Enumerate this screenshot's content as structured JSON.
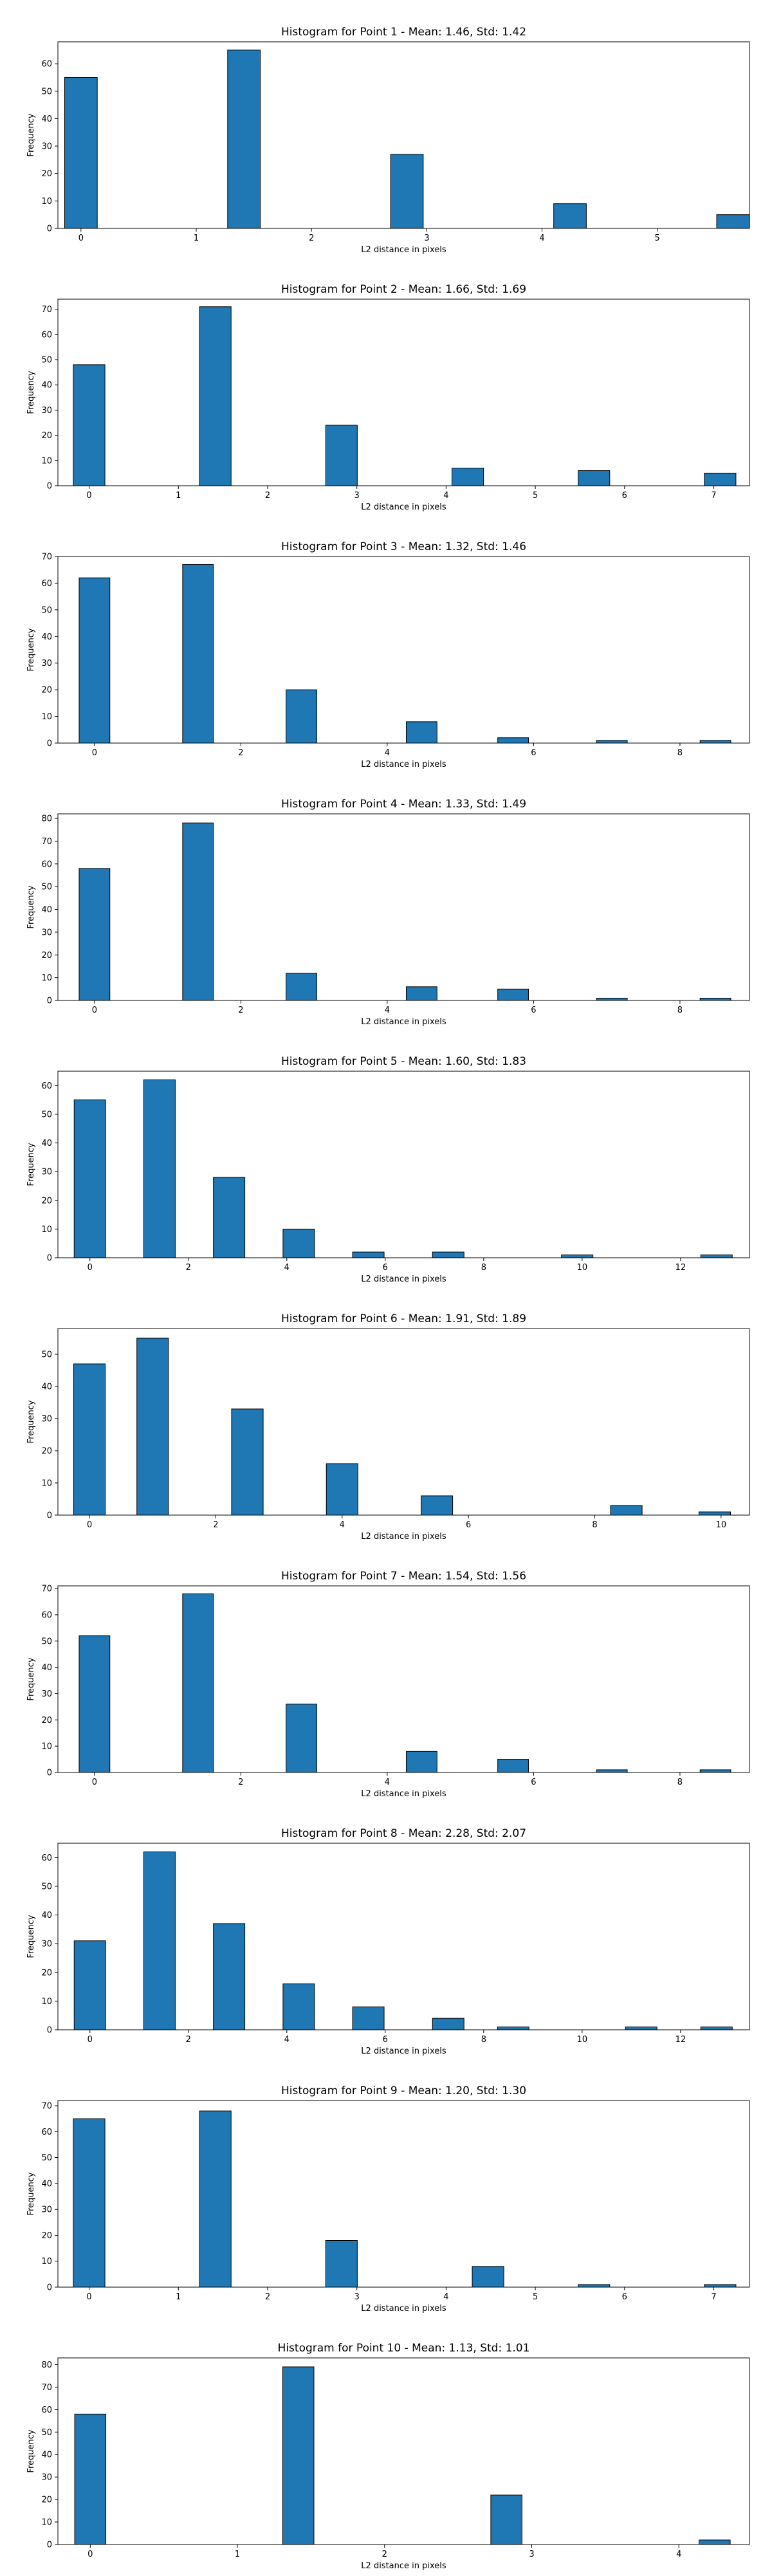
{
  "chart_data": [
    {
      "type": "bar",
      "title": "Histogram for Point 1 - Mean: 1.46, Std: 1.42",
      "xlabel": "L2 distance in pixels",
      "ylabel": "Frequency",
      "xlim": [
        -0.2,
        5.8
      ],
      "ylim": [
        0,
        68
      ],
      "xticks": [
        0,
        1,
        2,
        3,
        4,
        5
      ],
      "yticks": [
        0,
        10,
        20,
        30,
        40,
        50,
        60
      ],
      "bar_width": 0.283,
      "bars": [
        {
          "x": 0.0,
          "value": 55
        },
        {
          "x": 1.414,
          "value": 65
        },
        {
          "x": 2.828,
          "value": 27
        },
        {
          "x": 4.243,
          "value": 9
        },
        {
          "x": 5.657,
          "value": 5
        }
      ],
      "bar_color": "#1f77b4"
    },
    {
      "type": "bar",
      "title": "Histogram for Point 2 - Mean: 1.66, Std: 1.69",
      "xlabel": "L2 distance in pixels",
      "ylabel": "Frequency",
      "xlim": [
        -0.35,
        7.4
      ],
      "ylim": [
        0,
        74
      ],
      "xticks": [
        0,
        1,
        2,
        3,
        4,
        5,
        6,
        7
      ],
      "yticks": [
        0,
        10,
        20,
        30,
        40,
        50,
        60,
        70
      ],
      "bar_width": 0.354,
      "bars": [
        {
          "x": 0.0,
          "value": 48
        },
        {
          "x": 1.414,
          "value": 71
        },
        {
          "x": 2.828,
          "value": 24
        },
        {
          "x": 4.243,
          "value": 7
        },
        {
          "x": 5.657,
          "value": 6
        },
        {
          "x": 7.071,
          "value": 5
        }
      ],
      "bar_color": "#1f77b4"
    },
    {
      "type": "bar",
      "title": "Histogram for Point 3 - Mean: 1.32, Std: 1.46",
      "xlabel": "L2 distance in pixels",
      "ylabel": "Frequency",
      "xlim": [
        -0.5,
        8.95
      ],
      "ylim": [
        0,
        70
      ],
      "xticks": [
        0,
        2,
        4,
        6,
        8
      ],
      "yticks": [
        0,
        10,
        20,
        30,
        40,
        50,
        60,
        70
      ],
      "bar_width": 0.42,
      "bars": [
        {
          "x": 0.0,
          "value": 62
        },
        {
          "x": 1.414,
          "value": 67
        },
        {
          "x": 2.828,
          "value": 20
        },
        {
          "x": 4.47,
          "value": 8
        },
        {
          "x": 5.72,
          "value": 2
        },
        {
          "x": 7.07,
          "value": 1
        },
        {
          "x": 8.485,
          "value": 1
        }
      ],
      "bar_color": "#1f77b4"
    },
    {
      "type": "bar",
      "title": "Histogram for Point 4 - Mean: 1.33, Std: 1.49",
      "xlabel": "L2 distance in pixels",
      "ylabel": "Frequency",
      "xlim": [
        -0.5,
        8.95
      ],
      "ylim": [
        0,
        82
      ],
      "xticks": [
        0,
        2,
        4,
        6,
        8
      ],
      "yticks": [
        0,
        10,
        20,
        30,
        40,
        50,
        60,
        70,
        80
      ],
      "bar_width": 0.42,
      "bars": [
        {
          "x": 0.0,
          "value": 58
        },
        {
          "x": 1.414,
          "value": 78
        },
        {
          "x": 2.828,
          "value": 12
        },
        {
          "x": 4.47,
          "value": 6
        },
        {
          "x": 5.72,
          "value": 5
        },
        {
          "x": 7.07,
          "value": 1
        },
        {
          "x": 8.485,
          "value": 1
        }
      ],
      "bar_color": "#1f77b4"
    },
    {
      "type": "bar",
      "title": "Histogram for Point 5 - Mean: 1.60, Std: 1.83",
      "xlabel": "L2 distance in pixels",
      "ylabel": "Frequency",
      "xlim": [
        -0.65,
        13.4
      ],
      "ylim": [
        0,
        65
      ],
      "xticks": [
        0,
        2,
        4,
        6,
        8,
        10,
        12
      ],
      "yticks": [
        0,
        10,
        20,
        30,
        40,
        50,
        60
      ],
      "bar_width": 0.64,
      "bars": [
        {
          "x": 0.0,
          "value": 55
        },
        {
          "x": 1.414,
          "value": 62
        },
        {
          "x": 2.828,
          "value": 28
        },
        {
          "x": 4.243,
          "value": 10
        },
        {
          "x": 5.657,
          "value": 2
        },
        {
          "x": 7.28,
          "value": 2
        },
        {
          "x": 9.9,
          "value": 1
        },
        {
          "x": 12.73,
          "value": 1
        }
      ],
      "bar_color": "#1f77b4"
    },
    {
      "type": "bar",
      "title": "Histogram for Point 6 - Mean: 1.91, Std: 1.89",
      "xlabel": "L2 distance in pixels",
      "ylabel": "Frequency",
      "xlim": [
        -0.5,
        10.45
      ],
      "ylim": [
        0,
        58
      ],
      "xticks": [
        0,
        2,
        4,
        6,
        8,
        10
      ],
      "yticks": [
        0,
        10,
        20,
        30,
        40,
        50
      ],
      "bar_width": 0.5,
      "bars": [
        {
          "x": 0.0,
          "value": 47
        },
        {
          "x": 1.0,
          "value": 55
        },
        {
          "x": 2.5,
          "value": 33
        },
        {
          "x": 4.0,
          "value": 16
        },
        {
          "x": 5.5,
          "value": 6
        },
        {
          "x": 8.5,
          "value": 3
        },
        {
          "x": 9.9,
          "value": 1
        }
      ],
      "bar_color": "#1f77b4"
    },
    {
      "type": "bar",
      "title": "Histogram for Point 7 - Mean: 1.54, Std: 1.56",
      "xlabel": "L2 distance in pixels",
      "ylabel": "Frequency",
      "xlim": [
        -0.5,
        8.95
      ],
      "ylim": [
        0,
        71
      ],
      "xticks": [
        0,
        2,
        4,
        6,
        8
      ],
      "yticks": [
        0,
        10,
        20,
        30,
        40,
        50,
        60,
        70
      ],
      "bar_width": 0.42,
      "bars": [
        {
          "x": 0.0,
          "value": 52
        },
        {
          "x": 1.414,
          "value": 68
        },
        {
          "x": 2.828,
          "value": 26
        },
        {
          "x": 4.47,
          "value": 8
        },
        {
          "x": 5.72,
          "value": 5
        },
        {
          "x": 7.07,
          "value": 1
        },
        {
          "x": 8.485,
          "value": 1
        }
      ],
      "bar_color": "#1f77b4"
    },
    {
      "type": "bar",
      "title": "Histogram for Point 8 - Mean: 2.28, Std: 2.07",
      "xlabel": "L2 distance in pixels",
      "ylabel": "Frequency",
      "xlim": [
        -0.65,
        13.4
      ],
      "ylim": [
        0,
        65
      ],
      "xticks": [
        0,
        2,
        4,
        6,
        8,
        10,
        12
      ],
      "yticks": [
        0,
        10,
        20,
        30,
        40,
        50,
        60
      ],
      "bar_width": 0.64,
      "bars": [
        {
          "x": 0.0,
          "value": 31
        },
        {
          "x": 1.414,
          "value": 62
        },
        {
          "x": 2.828,
          "value": 37
        },
        {
          "x": 4.243,
          "value": 16
        },
        {
          "x": 5.657,
          "value": 8
        },
        {
          "x": 7.28,
          "value": 4
        },
        {
          "x": 8.6,
          "value": 1
        },
        {
          "x": 11.2,
          "value": 1
        },
        {
          "x": 12.73,
          "value": 1
        }
      ],
      "bar_color": "#1f77b4"
    },
    {
      "type": "bar",
      "title": "Histogram for Point 9 - Mean: 1.20, Std: 1.30",
      "xlabel": "L2 distance in pixels",
      "ylabel": "Frequency",
      "xlim": [
        -0.35,
        7.4
      ],
      "ylim": [
        0,
        72
      ],
      "xticks": [
        0,
        1,
        2,
        3,
        4,
        5,
        6,
        7
      ],
      "yticks": [
        0,
        10,
        20,
        30,
        40,
        50,
        60,
        70
      ],
      "bar_width": 0.354,
      "bars": [
        {
          "x": 0.0,
          "value": 65
        },
        {
          "x": 1.414,
          "value": 68
        },
        {
          "x": 2.828,
          "value": 18
        },
        {
          "x": 4.47,
          "value": 8
        },
        {
          "x": 5.657,
          "value": 1
        },
        {
          "x": 7.071,
          "value": 1
        }
      ],
      "bar_color": "#1f77b4"
    },
    {
      "type": "bar",
      "title": "Histogram for Point 10 - Mean: 1.13, Std: 1.01",
      "xlabel": "L2 distance in pixels",
      "ylabel": "Frequency",
      "xlim": [
        -0.22,
        4.48
      ],
      "ylim": [
        0,
        83
      ],
      "xticks": [
        0,
        1,
        2,
        3,
        4
      ],
      "yticks": [
        0,
        10,
        20,
        30,
        40,
        50,
        60,
        70,
        80
      ],
      "bar_width": 0.212,
      "bars": [
        {
          "x": 0.0,
          "value": 58
        },
        {
          "x": 1.414,
          "value": 79
        },
        {
          "x": 2.828,
          "value": 22
        },
        {
          "x": 4.243,
          "value": 2
        }
      ],
      "bar_color": "#1f77b4"
    }
  ]
}
